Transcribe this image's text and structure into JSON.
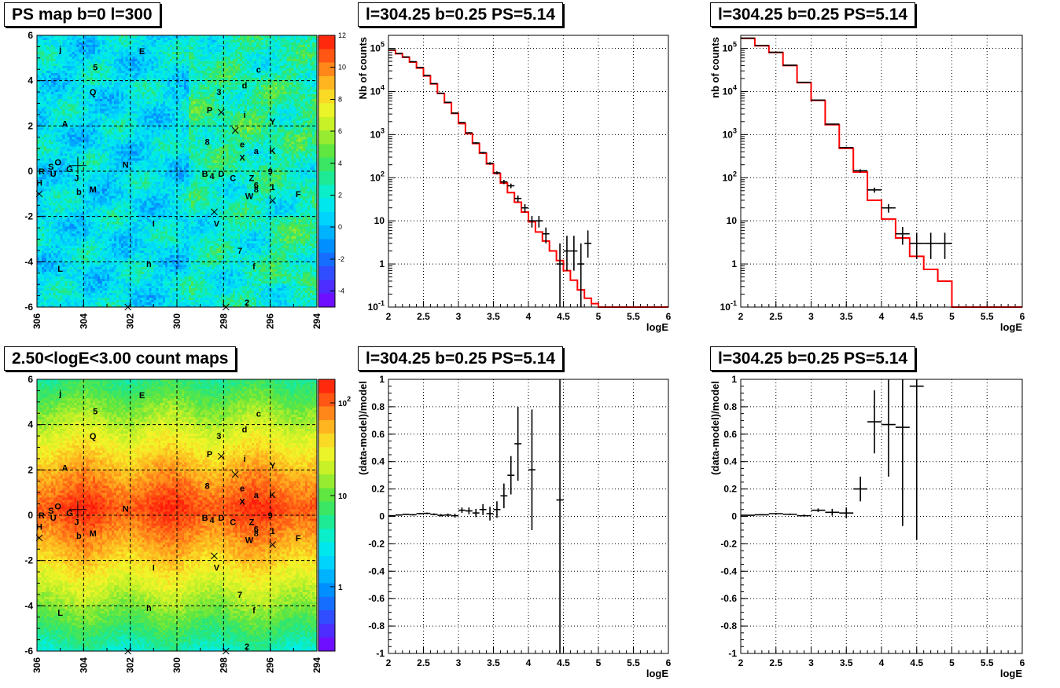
{
  "panels": {
    "p1": {
      "title": "PS map b=0 l=300"
    },
    "p2": {
      "title": "l=304.25 b=0.25 PS=5.14"
    },
    "p3": {
      "title": "l=304.25 b=0.25 PS=5.14"
    },
    "p4": {
      "title": "2.50<logE<3.00 count maps"
    },
    "p5": {
      "title": "l=304.25 b=0.25 PS=5.14"
    },
    "p6": {
      "title": "l=304.25 b=0.25 PS=5.14"
    }
  },
  "maps": {
    "x_ticks": [
      "306",
      "304",
      "302",
      "300",
      "298",
      "296",
      "294"
    ],
    "y_ticks": [
      "6",
      "4",
      "2",
      "0",
      "-2",
      "-4",
      "-6"
    ],
    "xlim": [
      306,
      294
    ],
    "ylim": [
      -6,
      6
    ],
    "colorbar_ps": {
      "scale": "linear",
      "range": [
        -5,
        12
      ],
      "ticks": [
        "12",
        "10",
        "8",
        "6",
        "4",
        "2",
        "0",
        "-2",
        "-4"
      ]
    },
    "colorbar_counts": {
      "scale": "log",
      "ticks": [
        "10²",
        "10",
        "1"
      ]
    },
    "sources": [
      {
        "label": "j",
        "l": 305.0,
        "b": 5.4
      },
      {
        "label": "E",
        "l": 301.5,
        "b": 5.3
      },
      {
        "label": "5",
        "l": 303.5,
        "b": 4.6
      },
      {
        "label": "c",
        "l": 296.5,
        "b": 4.5
      },
      {
        "label": "Q",
        "l": 303.6,
        "b": 3.5
      },
      {
        "label": "d",
        "l": 297.1,
        "b": 3.8
      },
      {
        "label": "3",
        "l": 298.2,
        "b": 3.5
      },
      {
        "label": "P",
        "l": 298.6,
        "b": 2.7
      },
      {
        "label": "i",
        "l": 297.1,
        "b": 2.5
      },
      {
        "label": "A",
        "l": 304.8,
        "b": 2.1
      },
      {
        "label": "Y",
        "l": 295.9,
        "b": 2.2
      },
      {
        "label": "8",
        "l": 298.7,
        "b": 1.3
      },
      {
        "label": "e",
        "l": 297.2,
        "b": 1.2
      },
      {
        "label": "a",
        "l": 296.6,
        "b": 0.9
      },
      {
        "label": "K",
        "l": 295.9,
        "b": 0.9
      },
      {
        "label": "X",
        "l": 297.2,
        "b": 0.6
      },
      {
        "label": "N",
        "l": 302.2,
        "b": 0.3
      },
      {
        "label": "O",
        "l": 305.1,
        "b": 0.4
      },
      {
        "label": "S",
        "l": 305.4,
        "b": 0.2
      },
      {
        "label": "G",
        "l": 304.6,
        "b": 0.1
      },
      {
        "label": "R",
        "l": 305.8,
        "b": 0.0
      },
      {
        "label": "U",
        "l": 305.3,
        "b": -0.1
      },
      {
        "label": "J",
        "l": 304.3,
        "b": -0.3
      },
      {
        "label": "H",
        "l": 305.9,
        "b": -0.5
      },
      {
        "label": "9",
        "l": 296.0,
        "b": 0.0
      },
      {
        "label": "B",
        "l": 298.8,
        "b": -0.1
      },
      {
        "label": "4",
        "l": 298.5,
        "b": -0.2
      },
      {
        "label": "D",
        "l": 298.1,
        "b": -0.1
      },
      {
        "label": "C",
        "l": 297.6,
        "b": -0.3
      },
      {
        "label": "Z",
        "l": 296.8,
        "b": -0.3
      },
      {
        "label": "6",
        "l": 296.6,
        "b": -0.6
      },
      {
        "label": "8",
        "l": 296.6,
        "b": -0.8
      },
      {
        "label": "1",
        "l": 295.9,
        "b": -0.7
      },
      {
        "label": "b",
        "l": 304.2,
        "b": -0.9
      },
      {
        "label": "M",
        "l": 303.6,
        "b": -0.8
      },
      {
        "label": "W",
        "l": 296.9,
        "b": -1.1
      },
      {
        "label": "F",
        "l": 294.8,
        "b": -1.0
      },
      {
        "label": "V",
        "l": 298.3,
        "b": -2.3
      },
      {
        "label": "I",
        "l": 301.0,
        "b": -2.3
      },
      {
        "label": "7",
        "l": 297.3,
        "b": -3.5
      },
      {
        "label": "L",
        "l": 305.0,
        "b": -4.3
      },
      {
        "label": "h",
        "l": 301.2,
        "b": -4.1
      },
      {
        "label": "f",
        "l": 296.7,
        "b": -4.2
      },
      {
        "label": "2",
        "l": 297.0,
        "b": -5.8
      }
    ],
    "crosses": [
      {
        "l": 298.1,
        "b": 2.6
      },
      {
        "l": 297.5,
        "b": 1.8
      },
      {
        "l": 298.4,
        "b": -1.8
      },
      {
        "l": 295.9,
        "b": -1.3
      },
      {
        "l": 305.9,
        "b": -1.0
      },
      {
        "l": 302.1,
        "b": -6.0
      },
      {
        "l": 297.9,
        "b": -6.0
      }
    ],
    "target": {
      "l": 304.25,
      "b": 0.25
    }
  },
  "chart_data": [
    {
      "type": "line",
      "title": "l=304.25 b=0.25 PS=5.14",
      "xlabel": "logE",
      "ylabel": "Nb of counts",
      "xlim": [
        2,
        6
      ],
      "ylim": [
        0.1,
        200000
      ],
      "yscale": "log",
      "grid": true,
      "x_ticks": [
        "2",
        "2.5",
        "3",
        "3.5",
        "4",
        "4.5",
        "5",
        "5.5",
        "6"
      ],
      "y_ticks": [
        "10⁻¹",
        "1",
        "10",
        "10²",
        "10³",
        "10⁴",
        "10⁵"
      ],
      "model_step": {
        "bin_width": 0.1,
        "x_start": [
          2.0,
          2.1,
          2.2,
          2.3,
          2.4,
          2.5,
          2.6,
          2.7,
          2.8,
          2.9,
          3.0,
          3.1,
          3.2,
          3.3,
          3.4,
          3.5,
          3.6,
          3.7,
          3.8,
          3.9,
          4.0,
          4.1,
          4.2,
          4.3,
          4.4,
          4.5,
          4.6,
          4.7,
          4.8,
          4.9,
          5.0,
          5.1,
          5.2,
          5.3,
          5.4,
          5.5,
          5.6,
          5.7,
          5.8,
          5.9
        ],
        "y": [
          90000,
          75000,
          62000,
          48000,
          35000,
          23000,
          15000,
          9000,
          5500,
          3100,
          1800,
          1050,
          620,
          370,
          210,
          125,
          75,
          45,
          27,
          16,
          9.5,
          5.5,
          3.4,
          2,
          1.2,
          0.7,
          0.42,
          0.25,
          0.16,
          0.12,
          0.1,
          0.1,
          0.1,
          0.1,
          0.1,
          0.1,
          0.1,
          0.1,
          0.1,
          0.1
        ]
      },
      "data_points": {
        "x": [
          2.05,
          2.15,
          2.25,
          2.35,
          2.45,
          2.55,
          2.65,
          2.75,
          2.85,
          2.95,
          3.05,
          3.15,
          3.25,
          3.35,
          3.45,
          3.55,
          3.65,
          3.75,
          3.85,
          3.95,
          4.05,
          4.15,
          4.25,
          4.35,
          4.45,
          4.55,
          4.65,
          4.75,
          4.85
        ],
        "y": [
          92000,
          76000,
          63000,
          49000,
          36000,
          23500,
          15200,
          9100,
          5600,
          3150,
          1900,
          1100,
          640,
          380,
          215,
          130,
          80,
          65,
          33,
          20,
          10,
          10,
          5,
          0,
          1,
          2,
          2,
          1,
          3
        ],
        "y_err_low": [
          300,
          280,
          250,
          220,
          190,
          150,
          120,
          95,
          75,
          56,
          44,
          33,
          25,
          19,
          15,
          11,
          9,
          8,
          5.7,
          4.4,
          3,
          3,
          2,
          0,
          0.9,
          1.3,
          1.3,
          0.9,
          1.6
        ],
        "y_err_high": [
          300,
          280,
          250,
          220,
          190,
          150,
          120,
          95,
          75,
          56,
          44,
          33,
          25,
          19,
          15,
          11,
          9,
          8,
          5.7,
          4.4,
          3,
          3,
          2,
          0,
          2,
          2.5,
          2.5,
          2,
          3
        ]
      },
      "legend_series": [
        "model",
        "data"
      ]
    },
    {
      "type": "line",
      "title": "l=304.25 b=0.25 PS=5.14",
      "xlabel": "logE",
      "ylabel": "nb of counts",
      "xlim": [
        2,
        6
      ],
      "ylim": [
        0.1,
        200000
      ],
      "yscale": "log",
      "grid": true,
      "x_ticks": [
        "2",
        "2.5",
        "3",
        "3.5",
        "4",
        "4.5",
        "5",
        "5.5",
        "6"
      ],
      "y_ticks": [
        "10⁻¹",
        "1",
        "10",
        "10²",
        "10³",
        "10⁴",
        "10⁵"
      ],
      "model_step": {
        "bin_width": 0.2,
        "x_start": [
          2.0,
          2.2,
          2.4,
          2.6,
          2.8,
          3.0,
          3.2,
          3.4,
          3.6,
          3.8,
          4.0,
          4.2,
          4.4,
          4.6,
          4.8,
          5.0,
          5.2,
          5.4,
          5.6,
          5.8
        ],
        "y": [
          170000,
          115000,
          80000,
          40000,
          16000,
          6200,
          1700,
          480,
          135,
          30,
          11,
          4,
          1.5,
          0.75,
          0.4,
          0.1,
          0.1,
          0.1,
          0.1,
          0.1
        ]
      },
      "data_points": {
        "x": [
          2.1,
          2.3,
          2.5,
          2.7,
          2.9,
          3.1,
          3.3,
          3.5,
          3.7,
          3.9,
          4.1,
          4.3,
          4.5,
          4.7,
          4.9
        ],
        "y": [
          172000,
          116000,
          81000,
          40500,
          16300,
          6300,
          1750,
          500,
          145,
          52,
          20,
          5,
          3,
          3,
          3
        ],
        "y_err_low": [
          400,
          340,
          280,
          200,
          130,
          80,
          42,
          22,
          12,
          7,
          4.5,
          2.2,
          1.7,
          1.7,
          1.7
        ],
        "y_err_high": [
          400,
          340,
          280,
          200,
          130,
          80,
          42,
          22,
          12,
          7,
          4.5,
          2.2,
          2.3,
          2.3,
          2.3
        ]
      }
    },
    {
      "type": "scatter",
      "title": "l=304.25 b=0.25 PS=5.14",
      "xlabel": "logE",
      "ylabel": "(data-model)/model",
      "xlim": [
        2,
        6
      ],
      "ylim": [
        -1,
        1
      ],
      "grid": true,
      "x_ticks": [
        "2",
        "2.5",
        "3",
        "3.5",
        "4",
        "4.5",
        "5",
        "5.5",
        "6"
      ],
      "y_ticks": [
        "-1",
        "-0.8",
        "-0.6",
        "-0.4",
        "-0.2",
        "0",
        "0.2",
        "0.4",
        "0.6",
        "0.8",
        "1"
      ],
      "bin_width": 0.1,
      "x": [
        2.05,
        2.15,
        2.25,
        2.35,
        2.45,
        2.55,
        2.65,
        2.75,
        2.85,
        2.95,
        3.05,
        3.15,
        3.25,
        3.35,
        3.45,
        3.55,
        3.65,
        3.75,
        3.85,
        4.05,
        4.45
      ],
      "y": [
        0.005,
        0.01,
        0.015,
        0.012,
        0.02,
        0.022,
        0.015,
        0.008,
        0.01,
        0.005,
        0.045,
        0.04,
        0.025,
        0.05,
        0.02,
        0.05,
        0.15,
        0.3,
        0.53,
        0.34,
        0.12
      ],
      "y_err": [
        0.003,
        0.004,
        0.004,
        0.005,
        0.005,
        0.006,
        0.007,
        0.009,
        0.011,
        0.014,
        0.02,
        0.025,
        0.03,
        0.04,
        0.05,
        0.06,
        0.09,
        0.14,
        0.27,
        0.44,
        1.2
      ]
    },
    {
      "type": "scatter",
      "title": "l=304.25 b=0.25 PS=5.14",
      "xlabel": "logE",
      "ylabel": "(data-model)/model",
      "xlim": [
        2,
        6
      ],
      "ylim": [
        -1,
        1
      ],
      "grid": true,
      "x_ticks": [
        "2",
        "2.5",
        "3",
        "3.5",
        "4",
        "4.5",
        "5",
        "5.5",
        "6"
      ],
      "y_ticks": [
        "-1",
        "-0.8",
        "-0.6",
        "-0.4",
        "-0.2",
        "0",
        "0.2",
        "0.4",
        "0.6",
        "0.8",
        "1"
      ],
      "bin_width": 0.2,
      "x": [
        2.1,
        2.3,
        2.5,
        2.7,
        2.9,
        3.1,
        3.3,
        3.5,
        3.7,
        3.9,
        4.1,
        4.3,
        4.5
      ],
      "y": [
        0.008,
        0.012,
        0.02,
        0.015,
        0.005,
        0.045,
        0.03,
        0.025,
        0.2,
        0.69,
        0.67,
        0.65,
        0.95
      ],
      "y_err": [
        0.003,
        0.004,
        0.005,
        0.006,
        0.009,
        0.013,
        0.025,
        0.04,
        0.09,
        0.23,
        0.38,
        0.72,
        1.12
      ]
    }
  ],
  "colors": {
    "model_line": "#ff0000",
    "data_marker": "#000000",
    "grid": "#000000",
    "frame_bg": "#ffffff"
  }
}
